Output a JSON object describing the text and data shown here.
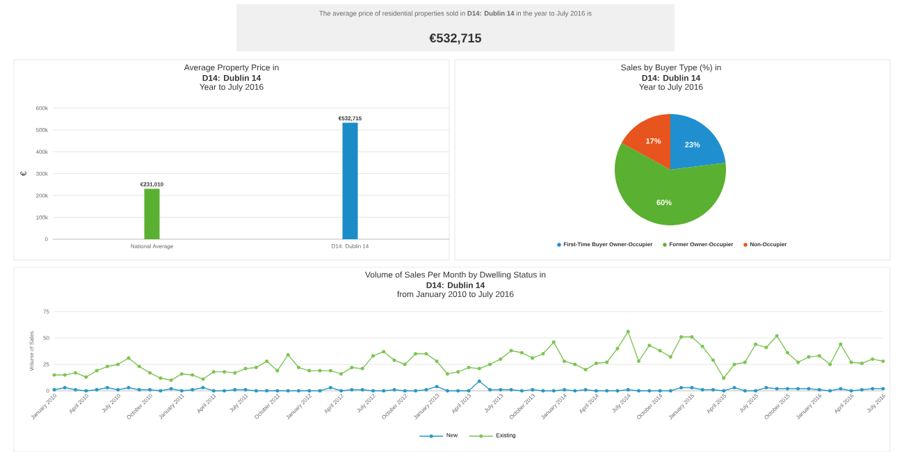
{
  "chart_data": [
    {
      "type": "other",
      "title": "The average price of residential properties sold in **D14: Dublin 14** in the year to July 2016 is",
      "subtitle": "€532,715"
    },
    {
      "type": "bar",
      "title": "Average Property Price in",
      "subtitle": "D14: Dublin 14",
      "annotations": [
        "Year to July 2016"
      ],
      "ylabel": "€",
      "categories": [
        "National Average",
        "D14: Dublin 14"
      ],
      "values": [
        231010,
        532715
      ],
      "colors": [
        "#5ab031",
        "#1b8cc8"
      ],
      "value_labels": [
        "€231,010",
        "€532,715"
      ],
      "ylim": [
        0,
        600000
      ],
      "yticks": [
        0,
        {
          "value": 100000,
          "label": "100k"
        },
        {
          "value": 200000,
          "label": "200k"
        },
        {
          "value": 300000,
          "label": "300k"
        },
        {
          "value": 400000,
          "label": "400k"
        },
        {
          "value": 500000,
          "label": "500k"
        },
        {
          "value": 600000,
          "label": "600k"
        }
      ],
      "grid": "y"
    },
    {
      "type": "pie",
      "title": "Sales by Buyer Type (%) in",
      "subtitle": "D14: Dublin 14",
      "annotations": [
        "Year to July 2016"
      ],
      "categories": [
        "First-Time Buyer Owner-Occupier",
        "Former Owner-Occupier",
        "Non-Occupier"
      ],
      "values": [
        23,
        60,
        17
      ],
      "colors": [
        "#1f8fcf",
        "#5ab031",
        "#e8541e"
      ],
      "value_labels": [
        "23%",
        "60%",
        "17%"
      ],
      "legend": "bottom"
    },
    {
      "type": "line",
      "title": "Volume of Sales Per Month by Dwelling Status in",
      "subtitle": "D14: Dublin 14",
      "annotations": [
        "from January 2010 to July 2016"
      ],
      "ylabel": "Volume of Sales",
      "categories": [
        "January 2010",
        null,
        null,
        "April 2010",
        null,
        null,
        "July 2010",
        null,
        null,
        "October 2010",
        null,
        null,
        "January 2011",
        null,
        null,
        "April 2011",
        null,
        null,
        "July 2011",
        null,
        null,
        "October 2011",
        null,
        null,
        "January 2012",
        null,
        null,
        "April 2012",
        null,
        null,
        "July 2012",
        null,
        null,
        "October 2012",
        null,
        null,
        "January 2013",
        null,
        null,
        "April 2013",
        null,
        null,
        "July 2013",
        null,
        null,
        "October 2013",
        null,
        null,
        "January 2014",
        null,
        null,
        "April 2014",
        null,
        null,
        "July 2014",
        null,
        null,
        "October 2014",
        null,
        null,
        "January 2015",
        null,
        null,
        "April 2015",
        null,
        null,
        "July 2015",
        null,
        null,
        "October 2015",
        null,
        null,
        "January 2016",
        null,
        null,
        "April 2016",
        null,
        null,
        "July 2016"
      ],
      "series": [
        {
          "name": "New",
          "color": "#2a9ac0",
          "values": [
            1,
            3,
            1,
            0,
            1,
            3,
            1,
            3,
            1,
            1,
            0,
            2,
            0,
            1,
            3,
            0,
            0,
            1,
            1,
            0,
            0,
            0,
            0,
            0,
            0,
            0,
            3,
            0,
            1,
            1,
            0,
            0,
            1,
            0,
            0,
            1,
            4,
            0,
            0,
            0,
            9,
            1,
            1,
            1,
            0,
            1,
            0,
            0,
            1,
            0,
            1,
            0,
            0,
            0,
            1,
            0,
            0,
            0,
            0,
            3,
            3,
            1,
            1,
            0,
            3,
            0,
            0,
            3,
            2,
            2,
            2,
            2,
            1,
            0,
            2,
            0,
            1,
            2,
            2
          ]
        },
        {
          "name": "Existing",
          "color": "#7cc552",
          "values": [
            15,
            15,
            17,
            13,
            19,
            23,
            25,
            31,
            23,
            17,
            12,
            10,
            16,
            15,
            11,
            18,
            18,
            17,
            21,
            22,
            28,
            19,
            34,
            22,
            19,
            19,
            19,
            16,
            22,
            21,
            33,
            37,
            29,
            25,
            35,
            35,
            28,
            16,
            18,
            22,
            21,
            25,
            30,
            38,
            36,
            31,
            35,
            46,
            28,
            25,
            20,
            26,
            27,
            40,
            56,
            28,
            43,
            38,
            32,
            51,
            51,
            42,
            29,
            12,
            25,
            27,
            44,
            41,
            52,
            36,
            27,
            32,
            33,
            25,
            44,
            27,
            26,
            30,
            28
          ]
        }
      ],
      "ylim": [
        0,
        75
      ],
      "yticks": [
        0,
        25,
        50,
        75
      ],
      "grid": "y",
      "legend": "bottom",
      "marker": "circle",
      "line_style": "solid"
    }
  ]
}
